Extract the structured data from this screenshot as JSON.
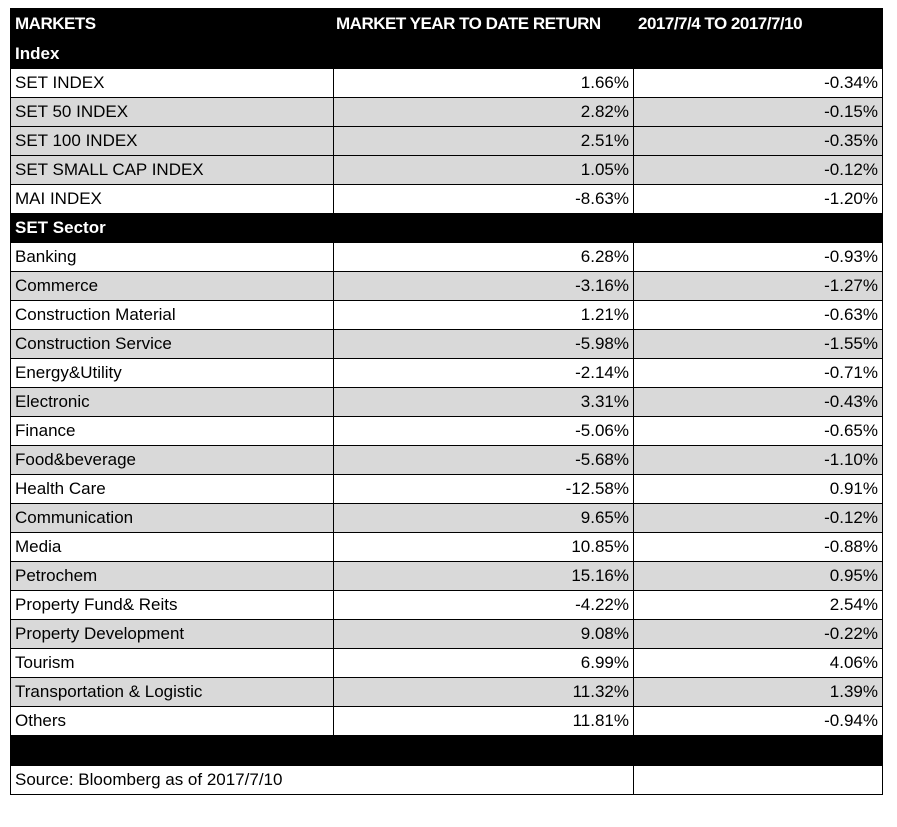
{
  "header": {
    "col1": "MARKETS",
    "col2": "MARKET YEAR TO DATE RETURN",
    "col3": "2017/7/4 TO 2017/7/10"
  },
  "sections": [
    {
      "title": "Index",
      "rows": [
        {
          "name": "SET INDEX",
          "ytd": "1.66%",
          "week": "-0.34%"
        },
        {
          "name": "SET 50 INDEX",
          "ytd": "2.82%",
          "week": "-0.15%"
        },
        {
          "name": "SET 100 INDEX",
          "ytd": "2.51%",
          "week": "-0.35%"
        },
        {
          "name": "SET SMALL CAP INDEX",
          "ytd": "1.05%",
          "week": "-0.12%"
        },
        {
          "name": "MAI INDEX",
          "ytd": "-8.63%",
          "week": "-1.20%"
        }
      ]
    },
    {
      "title": "SET Sector",
      "rows": [
        {
          "name": "Banking",
          "ytd": "6.28%",
          "week": "-0.93%"
        },
        {
          "name": "Commerce",
          "ytd": "-3.16%",
          "week": "-1.27%"
        },
        {
          "name": "Construction Material",
          "ytd": "1.21%",
          "week": "-0.63%"
        },
        {
          "name": "Construction Service",
          "ytd": "-5.98%",
          "week": "-1.55%"
        },
        {
          "name": "Energy&Utility",
          "ytd": "-2.14%",
          "week": "-0.71%"
        },
        {
          "name": "Electronic",
          "ytd": "3.31%",
          "week": "-0.43%"
        },
        {
          "name": "Finance",
          "ytd": "-5.06%",
          "week": "-0.65%"
        },
        {
          "name": "Food&beverage",
          "ytd": "-5.68%",
          "week": "-1.10%"
        },
        {
          "name": "Health Care",
          "ytd": "-12.58%",
          "week": "0.91%"
        },
        {
          "name": "Communication",
          "ytd": "9.65%",
          "week": "-0.12%"
        },
        {
          "name": "Media",
          "ytd": "10.85%",
          "week": "-0.88%"
        },
        {
          "name": "Petrochem",
          "ytd": "15.16%",
          "week": "0.95%"
        },
        {
          "name": "Property Fund& Reits",
          "ytd": "-4.22%",
          "week": "2.54%"
        },
        {
          "name": "Property Development",
          "ytd": "9.08%",
          "week": "-0.22%"
        },
        {
          "name": "Tourism",
          "ytd": "6.99%",
          "week": "4.06%"
        },
        {
          "name": "Transportation & Logistic",
          "ytd": "11.32%",
          "week": "1.39%"
        },
        {
          "name": "Others",
          "ytd": "11.81%",
          "week": "-0.94%"
        }
      ]
    }
  ],
  "footer": {
    "source": "Source: Bloomberg as of 2017/7/10"
  },
  "colors": {
    "header_bg": "#000000",
    "stripe_bg": "#d9d9d9"
  }
}
